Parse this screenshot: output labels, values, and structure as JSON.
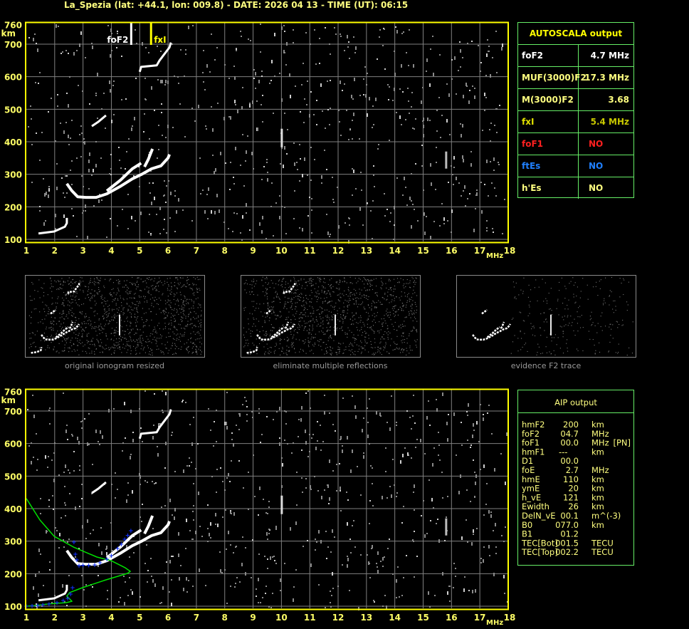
{
  "title": "La_Spezia (lat: +44.1, lon: 009.8) - DATE: 2026 04 13 - TIME (UT): 06:15",
  "colors": {
    "background": "#000000",
    "frame": "#ffff00",
    "grid": "#808080",
    "trace": "#ffffff",
    "model_profile": "#00e000",
    "fitted_points": "#0000ff",
    "table_border": "#66ee66"
  },
  "autoscala": {
    "header": "AUTOSCALA output",
    "rows": [
      {
        "label": "foF2",
        "value": "4.7 MHz",
        "label_color": "#ffffff",
        "value_color": "#ffffff"
      },
      {
        "label": "MUF(3000)F2",
        "value": "17.3 MHz",
        "label_color": "#ffff80",
        "value_color": "#ffff80"
      },
      {
        "label": "M(3000)F2",
        "value": "3.68",
        "label_color": "#ffff80",
        "value_color": "#ffff80"
      },
      {
        "label": "fxI",
        "value": "5.4 MHz",
        "label_color": "#e0e000",
        "value_color": "#c8c800"
      },
      {
        "label": "foF1",
        "value": "NO",
        "label_color": "#ff2020",
        "value_color": "#ff2020"
      },
      {
        "label": "ftEs",
        "value": "NO",
        "label_color": "#2080ff",
        "value_color": "#2080ff"
      },
      {
        "label": "h'Es",
        "value": "NO",
        "label_color": "#ffff80",
        "value_color": "#ffff80"
      }
    ]
  },
  "aip": {
    "header": "AIP output",
    "rows": [
      [
        "hmF2",
        "200",
        "km",
        ""
      ],
      [
        "foF2",
        "04.7",
        "MHz",
        ""
      ],
      [
        "foF1",
        "00.0",
        "MHz",
        "[PN]"
      ],
      [
        "hmF1",
        "---",
        "km",
        ""
      ],
      [
        "D1",
        "00.0",
        "",
        ""
      ],
      [
        "foE",
        "2.7",
        "MHz",
        ""
      ],
      [
        "hmE",
        "110",
        "km",
        ""
      ],
      [
        "ymE",
        "20",
        "km",
        ""
      ],
      [
        "h_vE",
        "121",
        "km",
        ""
      ],
      [
        "Ewidth",
        "26",
        "km",
        ""
      ],
      [
        "DelN_vE",
        "00.1",
        "m^(-3)",
        ""
      ],
      [
        "B0",
        "077.0",
        "km",
        ""
      ],
      [
        "B1",
        "01.2",
        "",
        ""
      ],
      [
        "TEC[Bot]",
        "001.5",
        "TECU",
        ""
      ],
      [
        "TEC[Top]",
        "002.2",
        "TECU",
        ""
      ]
    ]
  },
  "thumbnails": [
    {
      "caption": "original ionogram resized"
    },
    {
      "caption": "eliminate multiple reflections"
    },
    {
      "caption": "evidence F2 trace"
    }
  ],
  "chart_data": [
    {
      "type": "scatter",
      "name": "autoscala-ionogram",
      "xlabel": "MHz",
      "ylabel": "km",
      "xlim": [
        1,
        18
      ],
      "ylim": [
        100,
        760
      ],
      "x_ticks": [
        "1",
        "2",
        "3",
        "4",
        "5",
        "6",
        "7",
        "8",
        "9",
        "10",
        "11",
        "12",
        "13",
        "14",
        "15",
        "16",
        "17",
        "18"
      ],
      "y_ticks": [
        "760",
        "700",
        "600",
        "500",
        "400",
        "300",
        "200",
        "100"
      ],
      "grid": true,
      "markers": [
        {
          "label": "foF2",
          "freq": 4.7,
          "color": "#ffffff"
        },
        {
          "label": "fxI",
          "freq": 5.4,
          "color": "#ffff00"
        }
      ],
      "traces": {
        "F2_o": [
          [
            2.43,
            271
          ],
          [
            2.6,
            250
          ],
          [
            2.81,
            231
          ],
          [
            3.1,
            229
          ],
          [
            3.46,
            229
          ],
          [
            3.84,
            240
          ],
          [
            4.34,
            264
          ],
          [
            4.74,
            286
          ],
          [
            5.05,
            299
          ],
          [
            5.42,
            317
          ],
          [
            5.75,
            326
          ],
          [
            6.0,
            350
          ],
          [
            6.05,
            361
          ]
        ],
        "F2_x": [
          [
            3.84,
            249
          ],
          [
            4.32,
            282
          ],
          [
            4.74,
            317
          ],
          [
            5.05,
            334
          ]
        ],
        "F2_x2": [
          [
            5.17,
            323
          ],
          [
            5.3,
            345
          ],
          [
            5.45,
            378
          ]
        ],
        "E": [
          [
            1.43,
            118
          ],
          [
            1.98,
            124
          ],
          [
            2.36,
            139
          ],
          [
            2.43,
            150
          ],
          [
            2.43,
            166
          ]
        ],
        "second_hop": [
          [
            3.31,
            448
          ],
          [
            3.55,
            462
          ],
          [
            3.81,
            481
          ]
        ],
        "multi_hop": [
          [
            5.0,
            615
          ],
          [
            5.05,
            630
          ],
          [
            5.6,
            635
          ],
          [
            5.7,
            650
          ],
          [
            6.05,
            690
          ],
          [
            6.1,
            705
          ]
        ]
      }
    },
    {
      "type": "scatter",
      "name": "aip-ionogram",
      "xlabel": "MHz",
      "ylabel": "km",
      "xlim": [
        1,
        18
      ],
      "ylim": [
        100,
        760
      ],
      "x_ticks": [
        "1",
        "2",
        "3",
        "4",
        "5",
        "6",
        "7",
        "8",
        "9",
        "10",
        "11",
        "12",
        "13",
        "14",
        "15",
        "16",
        "17",
        "18"
      ],
      "y_ticks": [
        "760",
        "700",
        "600",
        "500",
        "400",
        "300",
        "200",
        "100"
      ],
      "grid": true,
      "model_profile": [
        [
          1.0,
          431
        ],
        [
          1.48,
          365
        ],
        [
          1.98,
          315
        ],
        [
          2.66,
          282
        ],
        [
          3.49,
          251
        ],
        [
          3.99,
          240
        ],
        [
          4.49,
          218
        ],
        [
          4.67,
          207
        ],
        [
          4.57,
          201
        ],
        [
          3.74,
          179
        ],
        [
          2.98,
          157
        ],
        [
          2.53,
          142
        ],
        [
          2.43,
          131
        ],
        [
          2.61,
          115
        ],
        [
          2.41,
          111
        ],
        [
          1.8,
          107
        ],
        [
          1.3,
          102
        ],
        [
          1.0,
          100
        ]
      ],
      "fitted_points_F": [
        [
          2.68,
          297
        ],
        [
          2.73,
          260
        ],
        [
          2.78,
          242
        ],
        [
          2.86,
          225
        ],
        [
          3.0,
          226
        ],
        [
          3.2,
          226
        ],
        [
          3.41,
          227
        ],
        [
          3.6,
          234
        ],
        [
          3.84,
          245
        ],
        [
          4.0,
          255
        ],
        [
          4.22,
          277
        ],
        [
          4.35,
          290
        ],
        [
          4.47,
          306
        ],
        [
          4.58,
          318
        ],
        [
          4.69,
          332
        ]
      ],
      "fitted_points_E": [
        [
          1.0,
          100
        ],
        [
          1.2,
          101
        ],
        [
          1.4,
          102
        ],
        [
          1.58,
          104
        ],
        [
          1.8,
          107
        ],
        [
          2.08,
          111
        ],
        [
          2.3,
          117
        ],
        [
          2.46,
          124
        ],
        [
          2.56,
          137
        ],
        [
          2.63,
          157
        ]
      ]
    }
  ]
}
